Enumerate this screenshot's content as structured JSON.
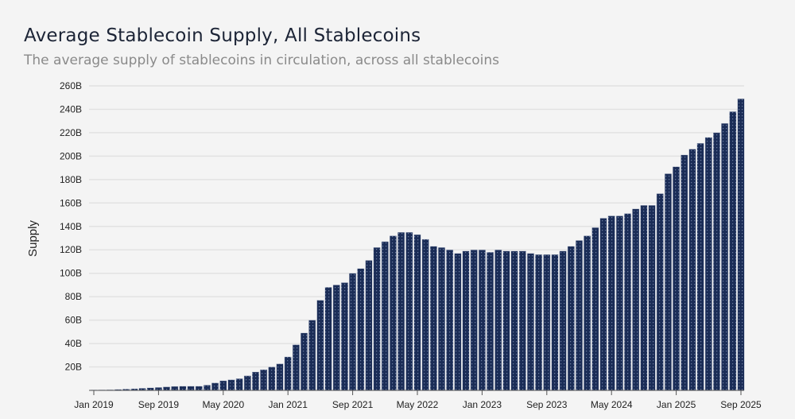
{
  "chart_data": {
    "type": "bar",
    "title": "Average Stablecoin Supply, All Stablecoins",
    "subtitle": "The average supply of stablecoins in circulation, across all stablecoins",
    "xlabel": "",
    "ylabel": "Supply",
    "ylim": [
      0,
      260
    ],
    "yticks": [
      20,
      40,
      60,
      80,
      100,
      120,
      140,
      160,
      180,
      200,
      220,
      240,
      260
    ],
    "ytick_labels": [
      "20B",
      "40B",
      "60B",
      "80B",
      "100B",
      "120B",
      "140B",
      "160B",
      "180B",
      "200B",
      "220B",
      "240B",
      "260B"
    ],
    "xtick_labels": [
      "Jan 2019",
      "Sep 2019",
      "May 2020",
      "Jan 2021",
      "Sep 2021",
      "May 2022",
      "Jan 2023",
      "Sep 2023",
      "May 2024",
      "Jan 2025",
      "Sep 2025"
    ],
    "grid": true,
    "bar_color": "#1b2d57",
    "start_month": "Jan 2019",
    "end_month": "Sep 2025",
    "unit": "B",
    "values": [
      0.4,
      0.5,
      0.6,
      0.8,
      1.1,
      1.4,
      1.8,
      2.2,
      2.5,
      3.0,
      3.4,
      3.6,
      3.6,
      3.6,
      4.5,
      6.4,
      8.2,
      9.1,
      10,
      12.5,
      15.7,
      17.7,
      20,
      22.7,
      28.6,
      39,
      49,
      60,
      77,
      88,
      90,
      92,
      100,
      104,
      111,
      122,
      127,
      132,
      135,
      135,
      133,
      129,
      123,
      122,
      120,
      117,
      119,
      120,
      120,
      118,
      120,
      119,
      119,
      119,
      117,
      116,
      116,
      116,
      119,
      123,
      128,
      132,
      139,
      147,
      149,
      149,
      151,
      155,
      158,
      158,
      168,
      185,
      191,
      201,
      206,
      211,
      216,
      220,
      228,
      238,
      249
    ]
  }
}
